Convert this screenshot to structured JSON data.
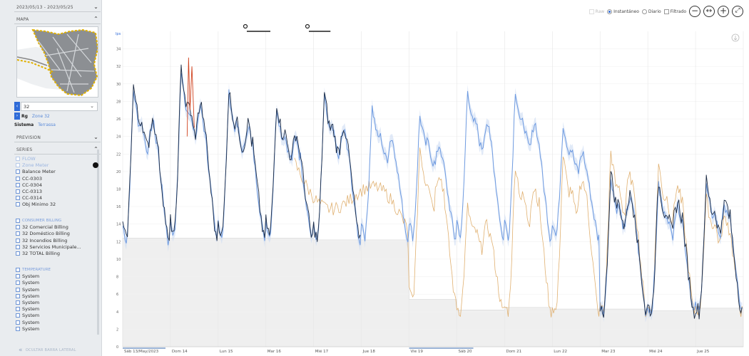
{
  "sidebar": {
    "date_range": "2023/05/13 - 2023/05/25",
    "map_label": "MAPA",
    "zone_selected": "32",
    "zone_tag": "Rg",
    "zone_link": "Zone 32",
    "system_label": "Sistema",
    "system_link": "Terrassa",
    "prevision_label": "PREVISION",
    "series_label": "SERIES",
    "series": [
      {
        "label": "FLOW",
        "muted": true
      },
      {
        "label": "Zone Meter",
        "muted": true,
        "dot": true
      },
      {
        "label": "Balance Meter"
      },
      {
        "label": "CC-0303"
      },
      {
        "label": "CC-0304"
      },
      {
        "label": "CC-0313"
      },
      {
        "label": "CC-0314"
      },
      {
        "label": "Obj Minimo 32"
      }
    ],
    "billing_group": "CONSUMER BILLING",
    "billing": [
      "32 Comercial Billing",
      "32 Doméstico Billing",
      "32 Incendios Billing",
      "32 Servicios Municipale...",
      "32 TOTAL Billing"
    ],
    "temperature_group": "TEMPERATURE",
    "temperature": [
      "System",
      "System",
      "System",
      "System",
      "System",
      "System",
      "System",
      "System",
      "System"
    ],
    "collapse_label": "OCULTAR BARRA LATERAL"
  },
  "toolbar": {
    "raw_label": "Raw",
    "instant_label": "Instantáneo",
    "daily_label": "Diario",
    "filtered_label": "Filtrado",
    "mode_selected": "instant",
    "zoom_out_icon": "minus",
    "pan_icon": "left-right",
    "zoom_in_icon": "plus",
    "reset_icon": "expand"
  },
  "chart_data": {
    "type": "line",
    "ylabel": "lps",
    "ylim": [
      0,
      36
    ],
    "yticks": [
      0,
      2,
      4,
      6,
      8,
      10,
      12,
      14,
      16,
      18,
      20,
      22,
      24,
      26,
      28,
      30,
      32,
      34
    ],
    "xlabels": [
      "Sáb 13/May/2023",
      "Dom 14",
      "Lun 15",
      "Mar 16",
      "Mié 17",
      "Jue 18",
      "Vie 19",
      "Sáb 20",
      "Dom 21",
      "Lun 22",
      "Mar 23",
      "Mié 24",
      "Jue 25"
    ],
    "grid": true,
    "day_peaks": [
      30,
      32,
      29.5,
      28,
      29,
      28,
      27,
      30,
      30,
      26,
      20,
      19,
      19
    ],
    "day_lows": [
      12,
      12.5,
      12.5,
      12.5,
      12,
      12.5,
      12.5,
      12.5,
      12.5,
      12.5,
      4,
      4,
      4
    ],
    "actual_peak_days": 5,
    "balance_peaks": [
      23,
      16,
      21,
      22,
      22.5,
      21,
      17
    ],
    "balance_lows": [
      5.5,
      4,
      4,
      4,
      4,
      4,
      4
    ],
    "objective_min": [
      12.4,
      12.4,
      12.4,
      12.4,
      12.2,
      12.2,
      5.4,
      4.2,
      4.5,
      4.3,
      4.3,
      4.1,
      4.4
    ],
    "series": [
      {
        "name": "Zone Meter",
        "color": "#1c2b44"
      },
      {
        "name": "Balance Meter",
        "color": "#e0b070"
      },
      {
        "name": "Obj Minimo 32",
        "color": "#ececec"
      }
    ],
    "colors": {
      "forecast": "#6f9be0",
      "band": "#c8d8f2",
      "anomaly": "#d0421e"
    }
  }
}
